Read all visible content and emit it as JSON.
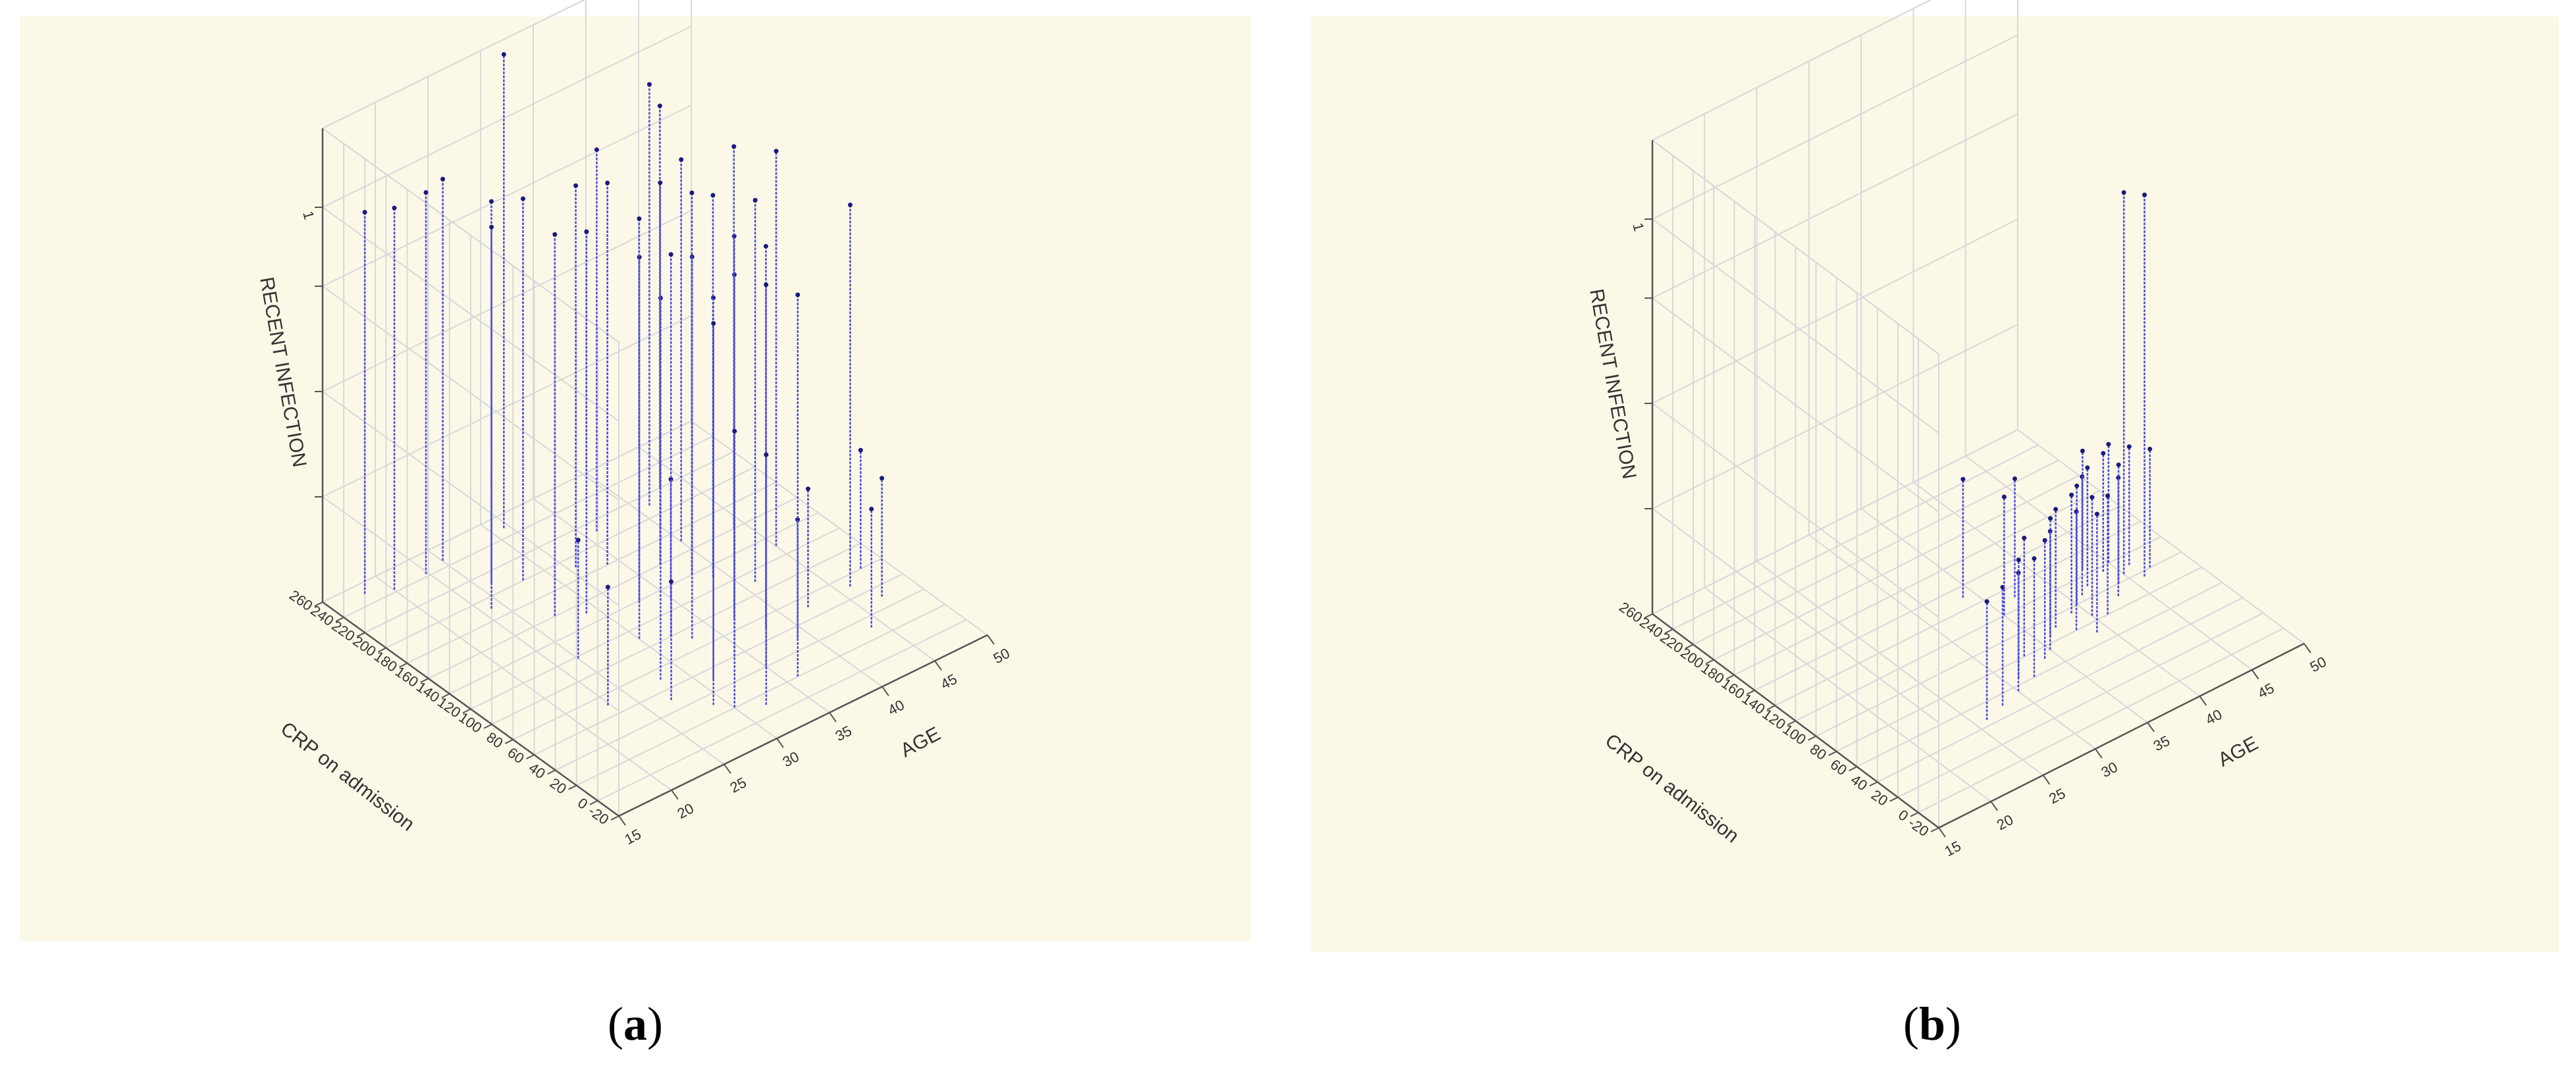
{
  "chart_data": [
    {
      "type": "scatter",
      "panel_label": "a",
      "zlabel": "RECENT INFECTION",
      "ylabel": "CRP on admission",
      "xlabel": "AGE",
      "z_ticks": [
        "1"
      ],
      "y_ticks": [
        "-20",
        "0",
        "20",
        "40",
        "60",
        "80",
        "100",
        "120",
        "140",
        "160",
        "180",
        "200",
        "220",
        "240",
        "260"
      ],
      "x_ticks": [
        "15",
        "20",
        "25",
        "30",
        "35",
        "40",
        "45",
        "50"
      ],
      "xlim": [
        15,
        50
      ],
      "ylim": [
        -20,
        260
      ],
      "zlim": [
        -0.5,
        1.3
      ],
      "grid": true,
      "points": [
        {
          "x": 17,
          "y": 240,
          "z": 1
        },
        {
          "x": 19,
          "y": 232,
          "z": 1
        },
        {
          "x": 22,
          "y": 232,
          "z": 1
        },
        {
          "x": 24,
          "y": 236,
          "z": 1
        },
        {
          "x": 25,
          "y": 200,
          "z": 1
        },
        {
          "x": 23,
          "y": 180,
          "z": 1
        },
        {
          "x": 27,
          "y": 190,
          "z": 1
        },
        {
          "x": 24,
          "y": 108,
          "z": 0
        },
        {
          "x": 26,
          "y": 150,
          "z": 1
        },
        {
          "x": 28,
          "y": 140,
          "z": 1
        },
        {
          "x": 30,
          "y": 238,
          "z": 1.35
        },
        {
          "x": 31,
          "y": 180,
          "z": 1
        },
        {
          "x": 33,
          "y": 170,
          "z": 1
        },
        {
          "x": 35,
          "y": 200,
          "z": 1
        },
        {
          "x": 34,
          "y": 120,
          "z": 0
        },
        {
          "x": 29,
          "y": 100,
          "z": 1
        },
        {
          "x": 31,
          "y": 90,
          "z": 1
        },
        {
          "x": 32,
          "y": 80,
          "z": 1
        },
        {
          "x": 27,
          "y": 60,
          "z": 1
        },
        {
          "x": 30,
          "y": 40,
          "z": 1
        },
        {
          "x": 33,
          "y": 50,
          "z": 1
        },
        {
          "x": 36,
          "y": 80,
          "z": 1
        },
        {
          "x": 37,
          "y": 60,
          "z": 1
        },
        {
          "x": 34,
          "y": 30,
          "z": 1
        },
        {
          "x": 38,
          "y": 120,
          "z": 1
        },
        {
          "x": 40,
          "y": 200,
          "z": 1.15
        },
        {
          "x": 42,
          "y": 210,
          "z": 1
        },
        {
          "x": 40,
          "y": 100,
          "z": 1
        },
        {
          "x": 43,
          "y": 150,
          "z": 1
        },
        {
          "x": 44,
          "y": 120,
          "z": 1.05
        },
        {
          "x": 45,
          "y": 60,
          "z": 1
        },
        {
          "x": 41,
          "y": 60,
          "z": 0
        },
        {
          "x": 43,
          "y": 20,
          "z": 0
        },
        {
          "x": 38,
          "y": 40,
          "z": 0
        },
        {
          "x": 46,
          "y": 40,
          "z": 0
        },
        {
          "x": 47,
          "y": 70,
          "z": 0
        },
        {
          "x": 22,
          "y": 60,
          "z": 0
        },
        {
          "x": 26,
          "y": 40,
          "z": 0
        },
        {
          "x": 29,
          "y": 10,
          "z": 0.6
        },
        {
          "x": 31,
          "y": 0,
          "z": 0.5
        },
        {
          "x": 35,
          "y": 10,
          "z": 1
        },
        {
          "x": 37,
          "y": 130,
          "z": 1
        },
        {
          "x": 39,
          "y": 160,
          "z": 1
        },
        {
          "x": 36,
          "y": 150,
          "z": 1
        },
        {
          "x": 32,
          "y": 130,
          "z": 1
        },
        {
          "x": 28,
          "y": 20,
          "z": 1
        }
      ]
    },
    {
      "type": "scatter",
      "panel_label": "b",
      "zlabel": "RECENT INFECTION",
      "ylabel": "CRP on admission",
      "xlabel": "AGE",
      "z_ticks": [
        "1"
      ],
      "y_ticks": [
        "-20",
        "0",
        "20",
        "40",
        "60",
        "80",
        "100",
        "120",
        "140",
        "160",
        "180",
        "200",
        "220",
        "240",
        "260"
      ],
      "x_ticks": [
        "15",
        "20",
        "25",
        "30",
        "35",
        "40",
        "45",
        "50"
      ],
      "xlim": [
        15,
        50
      ],
      "ylim": [
        -20,
        260
      ],
      "zlim": [
        -0.5,
        1.3
      ],
      "grid": true,
      "points": [
        {
          "x": 33,
          "y": 140,
          "z": 0
        },
        {
          "x": 25,
          "y": 35,
          "z": 0
        },
        {
          "x": 27,
          "y": 40,
          "z": 0
        },
        {
          "x": 29,
          "y": 45,
          "z": 0
        },
        {
          "x": 30,
          "y": 55,
          "z": 0
        },
        {
          "x": 31,
          "y": 50,
          "z": 0
        },
        {
          "x": 32,
          "y": 70,
          "z": 0
        },
        {
          "x": 33,
          "y": 60,
          "z": 0
        },
        {
          "x": 34,
          "y": 65,
          "z": 0
        },
        {
          "x": 35,
          "y": 75,
          "z": 0
        },
        {
          "x": 36,
          "y": 80,
          "z": 0
        },
        {
          "x": 37,
          "y": 70,
          "z": 0
        },
        {
          "x": 38,
          "y": 85,
          "z": 0
        },
        {
          "x": 39,
          "y": 90,
          "z": 0
        },
        {
          "x": 40,
          "y": 95,
          "z": 0
        },
        {
          "x": 41,
          "y": 100,
          "z": 0
        },
        {
          "x": 42,
          "y": 80,
          "z": 0
        },
        {
          "x": 43,
          "y": 90,
          "z": 0
        },
        {
          "x": 44,
          "y": 110,
          "z": 0
        },
        {
          "x": 45,
          "y": 100,
          "z": 0
        },
        {
          "x": 46,
          "y": 90,
          "z": 0
        },
        {
          "x": 34,
          "y": 110,
          "z": 0
        },
        {
          "x": 36,
          "y": 120,
          "z": 0
        },
        {
          "x": 38,
          "y": 60,
          "z": 0
        },
        {
          "x": 40,
          "y": 70,
          "z": 0
        },
        {
          "x": 42,
          "y": 115,
          "z": 0
        },
        {
          "x": 44,
          "y": 95,
          "z": 1
        },
        {
          "x": 45,
          "y": 85,
          "z": 1
        },
        {
          "x": 43,
          "y": 105,
          "z": 0
        },
        {
          "x": 39,
          "y": 75,
          "z": 0
        }
      ]
    }
  ]
}
